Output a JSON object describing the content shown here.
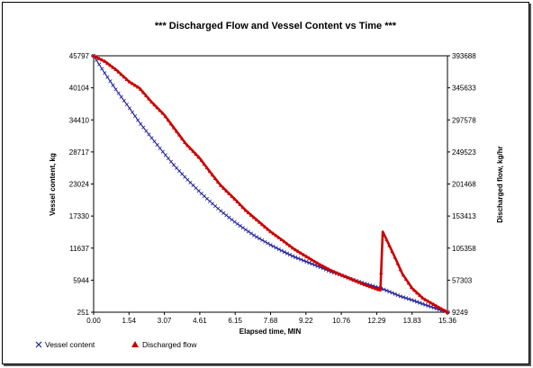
{
  "chart_data": {
    "type": "line",
    "title": "*** Discharged Flow and Vessel Content vs Time ***",
    "xlabel": "Elapsed time, MIN",
    "ylabel_left": "Vessel content, kg",
    "ylabel_right": "Discharged flow, kg/hr",
    "x_ticks": [
      "0.00",
      "1.54",
      "3.07",
      "4.61",
      "6.15",
      "7.68",
      "9.22",
      "10.76",
      "12.29",
      "13.83",
      "15.36"
    ],
    "y_left_ticks": [
      "251",
      "5944",
      "11637",
      "17330",
      "23024",
      "28717",
      "34410",
      "40104",
      "45797"
    ],
    "y_right_ticks": [
      "9249",
      "57303",
      "105358",
      "153413",
      "201468",
      "249523",
      "297578",
      "345633",
      "393688"
    ],
    "xlim": [
      0,
      15.36
    ],
    "ylim_left": [
      251,
      45797
    ],
    "ylim_right": [
      9249,
      393688
    ],
    "grid": false,
    "legend_placement": "bottom-left",
    "series": [
      {
        "name": "Vessel content",
        "axis": "left",
        "color": "#1f1f9a",
        "marker": "x",
        "x": [
          0,
          0.5,
          1.0,
          1.54,
          2.0,
          2.5,
          3.07,
          3.5,
          4.0,
          4.61,
          5.0,
          5.5,
          6.15,
          6.6,
          7.0,
          7.68,
          8.2,
          8.7,
          9.22,
          9.8,
          10.3,
          10.76,
          11.3,
          11.8,
          12.29,
          12.6,
          12.9,
          13.3,
          13.83,
          14.3,
          14.8,
          15.36
        ],
        "y": [
          45797,
          42600,
          39600,
          36600,
          33900,
          31300,
          28400,
          26300,
          24100,
          21600,
          20100,
          18300,
          16200,
          14900,
          13800,
          12200,
          11100,
          10100,
          9250,
          8300,
          7450,
          6800,
          6000,
          5300,
          4700,
          4300,
          3800,
          3100,
          2400,
          1700,
          1000,
          251
        ]
      },
      {
        "name": "Discharged flow",
        "axis": "right",
        "color": "#cc0000",
        "marker": "triangle",
        "x": [
          0,
          0.5,
          1.0,
          1.54,
          2.0,
          2.5,
          3.07,
          3.5,
          4.0,
          4.61,
          5.0,
          5.5,
          6.15,
          6.6,
          7.0,
          7.68,
          8.2,
          8.7,
          9.22,
          9.8,
          10.3,
          10.76,
          11.3,
          11.8,
          12.29,
          12.45,
          12.55,
          12.8,
          13.1,
          13.4,
          13.83,
          14.3,
          14.8,
          15.36
        ],
        "y": [
          393688,
          385000,
          372000,
          355000,
          345000,
          325000,
          305000,
          285000,
          262000,
          240000,
          222000,
          200000,
          178000,
          162000,
          150000,
          130000,
          117000,
          104000,
          93000,
          81000,
          72000,
          65000,
          57000,
          50000,
          44000,
          42000,
          130000,
          112000,
          90000,
          67000,
          45000,
          30000,
          20000,
          9249
        ]
      }
    ]
  }
}
